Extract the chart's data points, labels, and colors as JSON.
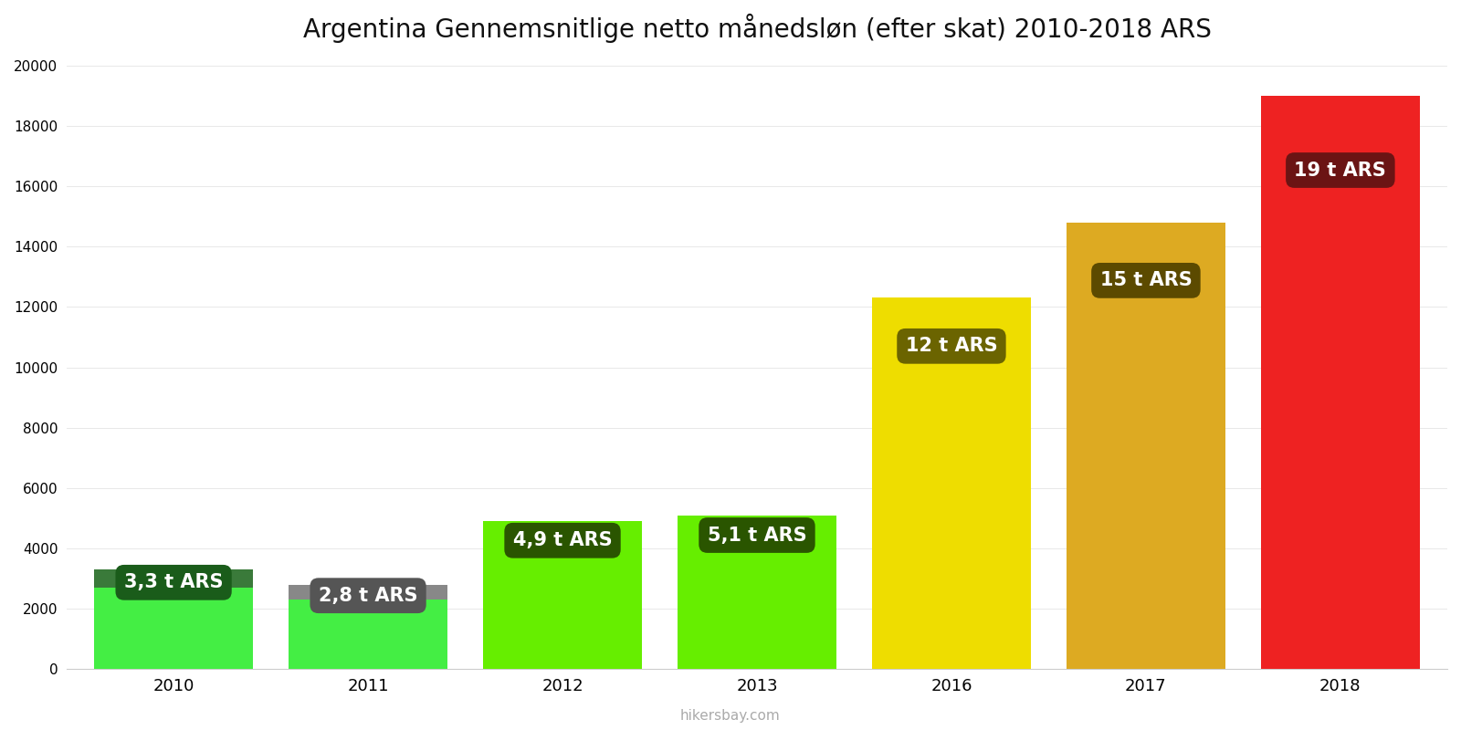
{
  "title": "Argentina Gennemsnitlige netto månedsløn (efter skat) 2010-2018 ARS",
  "years": [
    2010,
    2011,
    2012,
    2013,
    2016,
    2017,
    2018
  ],
  "values": [
    3300,
    2800,
    4900,
    5100,
    12300,
    14800,
    19000
  ],
  "labels": [
    "3,3 t ARS",
    "2,8 t ARS",
    "4,9 t ARS",
    "5,1 t ARS",
    "12 t ARS",
    "15 t ARS",
    "19 t ARS"
  ],
  "bar_colors": [
    "#44ee44",
    "#44ee44",
    "#66ee00",
    "#66ee00",
    "#eedd00",
    "#ddaa22",
    "#ee2222"
  ],
  "label_bg_colors": [
    "#1a5c1a",
    "#555555",
    "#2a5500",
    "#2a5500",
    "#6b6400",
    "#5c4a00",
    "#6b1414"
  ],
  "cap_colors": [
    "#3a7a3a",
    "#888888",
    null,
    null,
    null,
    null,
    null
  ],
  "ylim": [
    0,
    20000
  ],
  "yticks": [
    0,
    2000,
    4000,
    6000,
    8000,
    10000,
    12000,
    14000,
    16000,
    18000,
    20000
  ],
  "background_color": "#ffffff",
  "watermark": "hikersbay.com",
  "bar_width": 0.82,
  "title_fontsize": 20,
  "label_fontsize": 15
}
